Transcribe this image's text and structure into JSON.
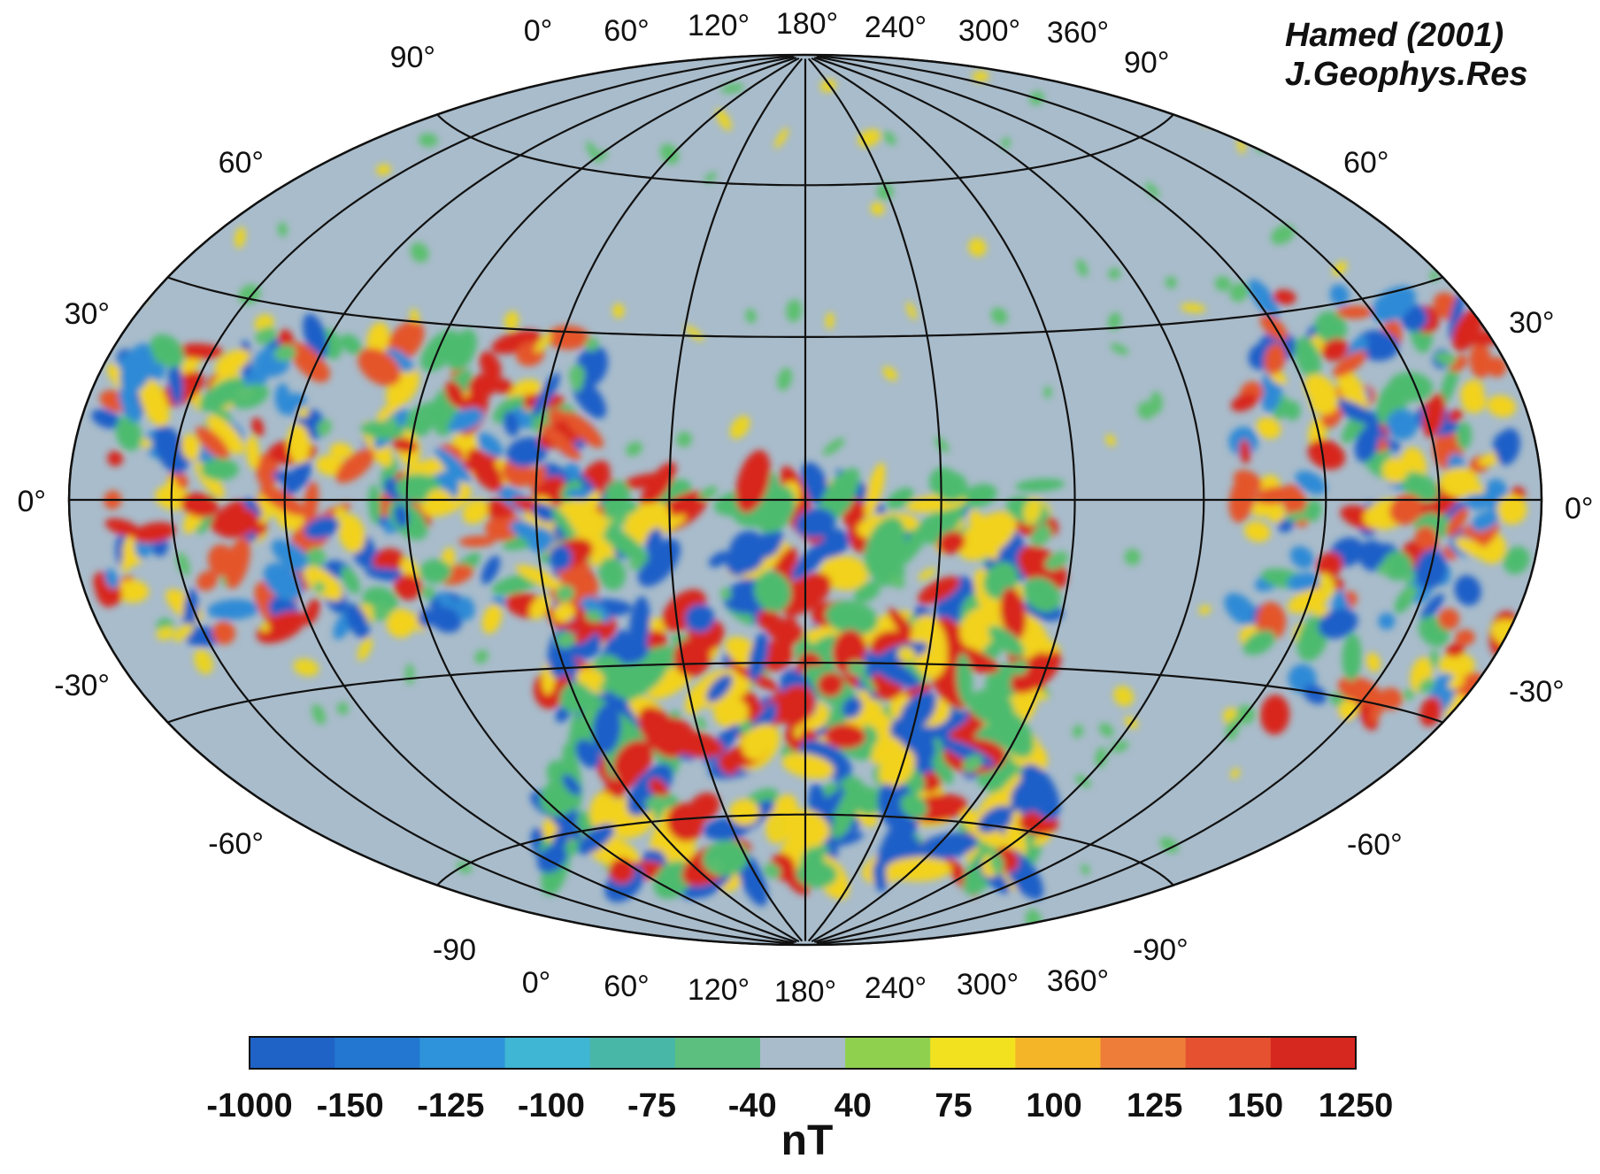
{
  "citation": {
    "line1": "Hamed (2001)",
    "line2": "J.Geophys.Res"
  },
  "map": {
    "projection": "Hammer-Aitoff",
    "background_color": "#a9bccb",
    "latitude_labels_left": [
      "90°",
      "60°",
      "30°",
      "0°",
      "-30°",
      "-60°",
      "-90"
    ],
    "latitude_labels_right": [
      "90°",
      "60°",
      "30°",
      "0°",
      "-30°",
      "-60°",
      "-90°"
    ],
    "longitude_labels_top": [
      "0°",
      "60°",
      "120°",
      "180°",
      "240°",
      "300°",
      "360°"
    ],
    "longitude_labels_bottom": [
      "0°",
      "60°",
      "120°",
      "180°",
      "240°",
      "300°",
      "360°"
    ]
  },
  "colorbar": {
    "tick_labels": [
      "-1000",
      "-150",
      "-125",
      "-100",
      "-75",
      "-40",
      "40",
      "75",
      "100",
      "125",
      "150",
      "1250"
    ],
    "unit": "nT",
    "colors": [
      "#1f63c7",
      "#2377d0",
      "#2e93da",
      "#3fb6d4",
      "#49b7a8",
      "#5cbf7f",
      "#a9bccb",
      "#8fd14e",
      "#f2e11e",
      "#f5b528",
      "#ef7d3a",
      "#e65230",
      "#d6281f"
    ]
  }
}
